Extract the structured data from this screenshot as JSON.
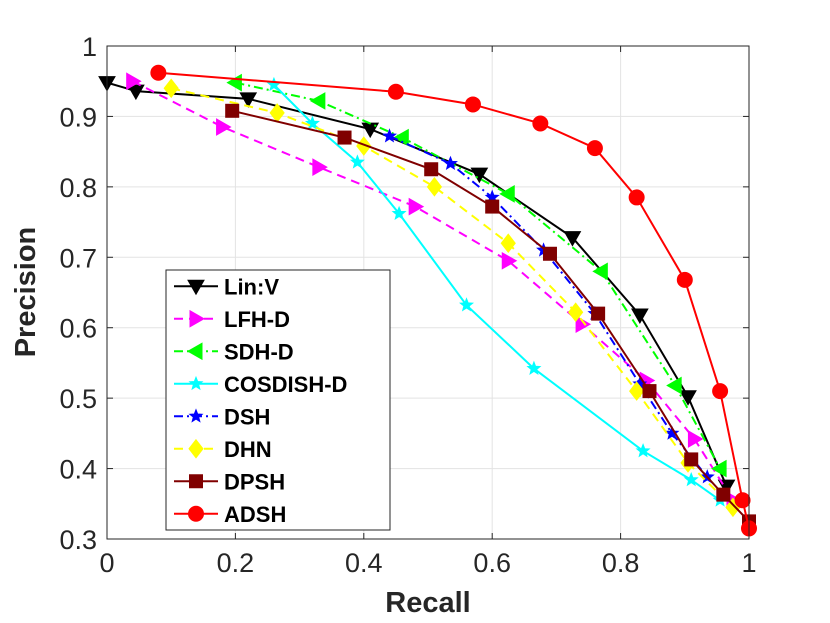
{
  "chart_data": {
    "type": "line",
    "xlabel": "Recall",
    "ylabel": "Precision",
    "xlim": [
      0,
      1
    ],
    "ylim": [
      0.3,
      1
    ],
    "xticks": [
      "0",
      "0.2",
      "0.4",
      "0.6",
      "0.8",
      "1"
    ],
    "yticks": [
      "0.3",
      "0.4",
      "0.5",
      "0.6",
      "0.7",
      "0.8",
      "0.9",
      "1"
    ],
    "grid": true,
    "legend_position": "bottom-left",
    "series": [
      {
        "name": "Lin:V",
        "color": "#000000",
        "dash": "solid",
        "marker": "triangle-down",
        "x": [
          0.0,
          0.045,
          0.22,
          0.41,
          0.58,
          0.725,
          0.83,
          0.905,
          0.965
        ],
        "y": [
          0.948,
          0.936,
          0.925,
          0.882,
          0.818,
          0.728,
          0.618,
          0.502,
          0.375
        ]
      },
      {
        "name": "LFH-D",
        "color": "#ff00ff",
        "dash": "dash",
        "marker": "triangle-right",
        "x": [
          0.04,
          0.18,
          0.33,
          0.48,
          0.625,
          0.74,
          0.84,
          0.915,
          0.975
        ],
        "y": [
          0.95,
          0.885,
          0.828,
          0.772,
          0.695,
          0.605,
          0.525,
          0.442,
          0.355
        ]
      },
      {
        "name": "SDH-D",
        "color": "#00ff00",
        "dash": "dashdot",
        "marker": "triangle-left",
        "x": [
          0.2,
          0.33,
          0.46,
          0.625,
          0.77,
          0.885,
          0.955
        ],
        "y": [
          0.948,
          0.922,
          0.87,
          0.79,
          0.68,
          0.518,
          0.4
        ]
      },
      {
        "name": "COSDISH-D",
        "color": "#00ffff",
        "dash": "solid",
        "marker": "star",
        "x": [
          0.26,
          0.32,
          0.39,
          0.455,
          0.56,
          0.665,
          0.835,
          0.91,
          0.955
        ],
        "y": [
          0.945,
          0.89,
          0.835,
          0.762,
          0.632,
          0.542,
          0.425,
          0.384,
          0.355
        ]
      },
      {
        "name": "DSH",
        "color": "#0000ff",
        "dash": "dashdot",
        "marker": "star",
        "x": [
          0.44,
          0.535,
          0.6,
          0.68,
          0.76,
          0.83,
          0.88,
          0.935
        ],
        "y": [
          0.872,
          0.833,
          0.785,
          0.71,
          0.62,
          0.52,
          0.45,
          0.388
        ]
      },
      {
        "name": "DHN",
        "color": "#ffff00",
        "dash": "dash",
        "marker": "diamond",
        "x": [
          0.1,
          0.265,
          0.4,
          0.51,
          0.625,
          0.73,
          0.825,
          0.905,
          0.975
        ],
        "y": [
          0.94,
          0.905,
          0.858,
          0.8,
          0.72,
          0.622,
          0.51,
          0.408,
          0.345
        ]
      },
      {
        "name": "DPSH",
        "color": "#800000",
        "dash": "solid",
        "marker": "square",
        "x": [
          0.195,
          0.37,
          0.505,
          0.6,
          0.69,
          0.765,
          0.845,
          0.91,
          0.96,
          1.0
        ],
        "y": [
          0.908,
          0.87,
          0.825,
          0.772,
          0.705,
          0.62,
          0.51,
          0.413,
          0.363,
          0.325
        ]
      },
      {
        "name": "ADSH",
        "color": "#ff0000",
        "dash": "solid",
        "marker": "circle",
        "x": [
          0.08,
          0.45,
          0.57,
          0.675,
          0.76,
          0.825,
          0.9,
          0.955,
          0.99,
          1.0
        ],
        "y": [
          0.962,
          0.935,
          0.917,
          0.89,
          0.855,
          0.785,
          0.668,
          0.51,
          0.355,
          0.315
        ]
      }
    ]
  }
}
